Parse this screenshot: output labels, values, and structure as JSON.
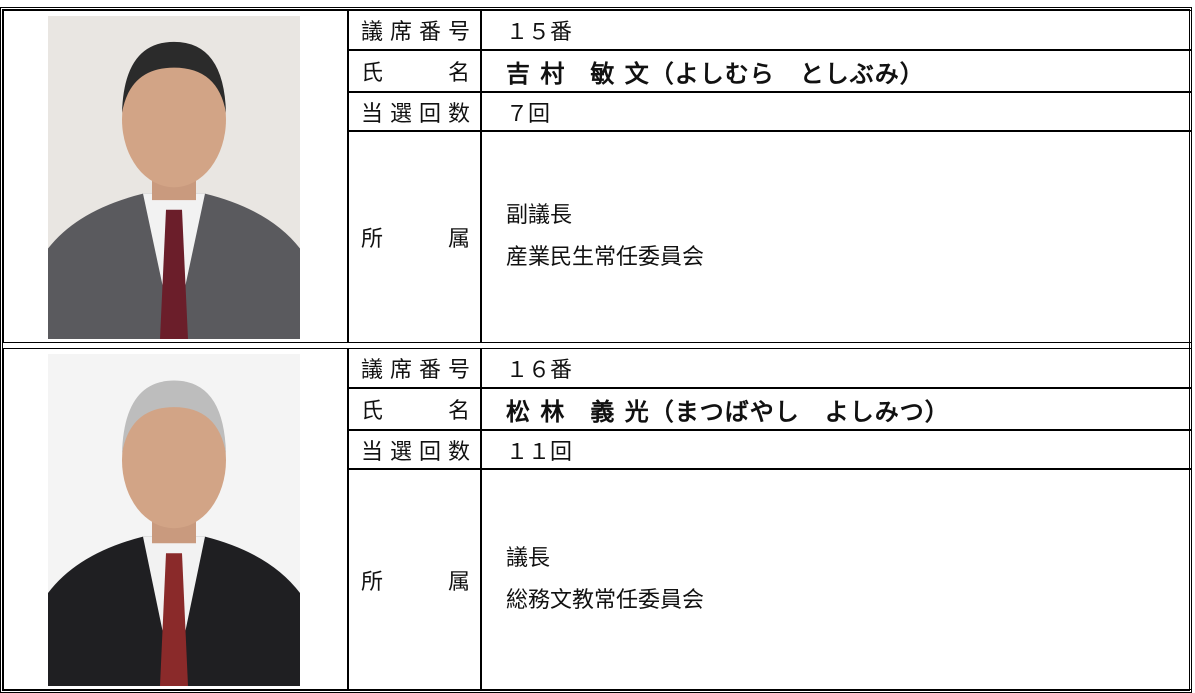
{
  "members": [
    {
      "seat": {
        "label": "議席番号",
        "value": "１５番"
      },
      "name": {
        "label": "氏 名",
        "value": "吉 村　敏 文（よしむら　としぶみ）"
      },
      "terms": {
        "label": "当選回数",
        "value": "７回"
      },
      "affiliation": {
        "label": "所 属",
        "lines": [
          "副議長",
          "産業民生常任委員会"
        ]
      }
    },
    {
      "seat": {
        "label": "議席番号",
        "value": "１６番"
      },
      "name": {
        "label": "氏 名",
        "value": "松 林　義 光（まつばやし　よしみつ）"
      },
      "terms": {
        "label": "当選回数",
        "value": "１１回"
      },
      "affiliation": {
        "label": "所 属",
        "lines": [
          "議長",
          "総務文教常任委員会"
        ]
      }
    }
  ]
}
